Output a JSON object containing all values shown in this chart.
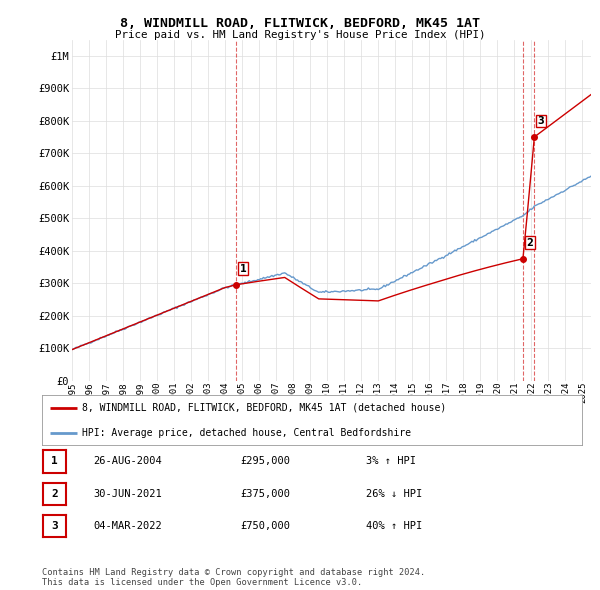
{
  "title": "8, WINDMILL ROAD, FLITWICK, BEDFORD, MK45 1AT",
  "subtitle": "Price paid vs. HM Land Registry's House Price Index (HPI)",
  "ytick_values": [
    0,
    100000,
    200000,
    300000,
    400000,
    500000,
    600000,
    700000,
    800000,
    900000,
    1000000
  ],
  "ylim": [
    0,
    1050000
  ],
  "xlim_start": 1995.0,
  "xlim_end": 2025.5,
  "sale_color": "#cc0000",
  "hpi_color": "#6699cc",
  "vline_color": "#cc0000",
  "sale_dates": [
    2004.65,
    2021.5,
    2022.17
  ],
  "sale_prices": [
    295000,
    375000,
    750000
  ],
  "sale_labels": [
    "1",
    "2",
    "3"
  ],
  "legend_sale_label": "8, WINDMILL ROAD, FLITWICK, BEDFORD, MK45 1AT (detached house)",
  "legend_hpi_label": "HPI: Average price, detached house, Central Bedfordshire",
  "table_rows": [
    {
      "num": "1",
      "date": "26-AUG-2004",
      "price": "£295,000",
      "pct": "3% ↑ HPI"
    },
    {
      "num": "2",
      "date": "30-JUN-2021",
      "price": "£375,000",
      "pct": "26% ↓ HPI"
    },
    {
      "num": "3",
      "date": "04-MAR-2022",
      "price": "£750,000",
      "pct": "40% ↑ HPI"
    }
  ],
  "footnote": "Contains HM Land Registry data © Crown copyright and database right 2024.\nThis data is licensed under the Open Government Licence v3.0.",
  "background_color": "#ffffff",
  "grid_color": "#dddddd"
}
